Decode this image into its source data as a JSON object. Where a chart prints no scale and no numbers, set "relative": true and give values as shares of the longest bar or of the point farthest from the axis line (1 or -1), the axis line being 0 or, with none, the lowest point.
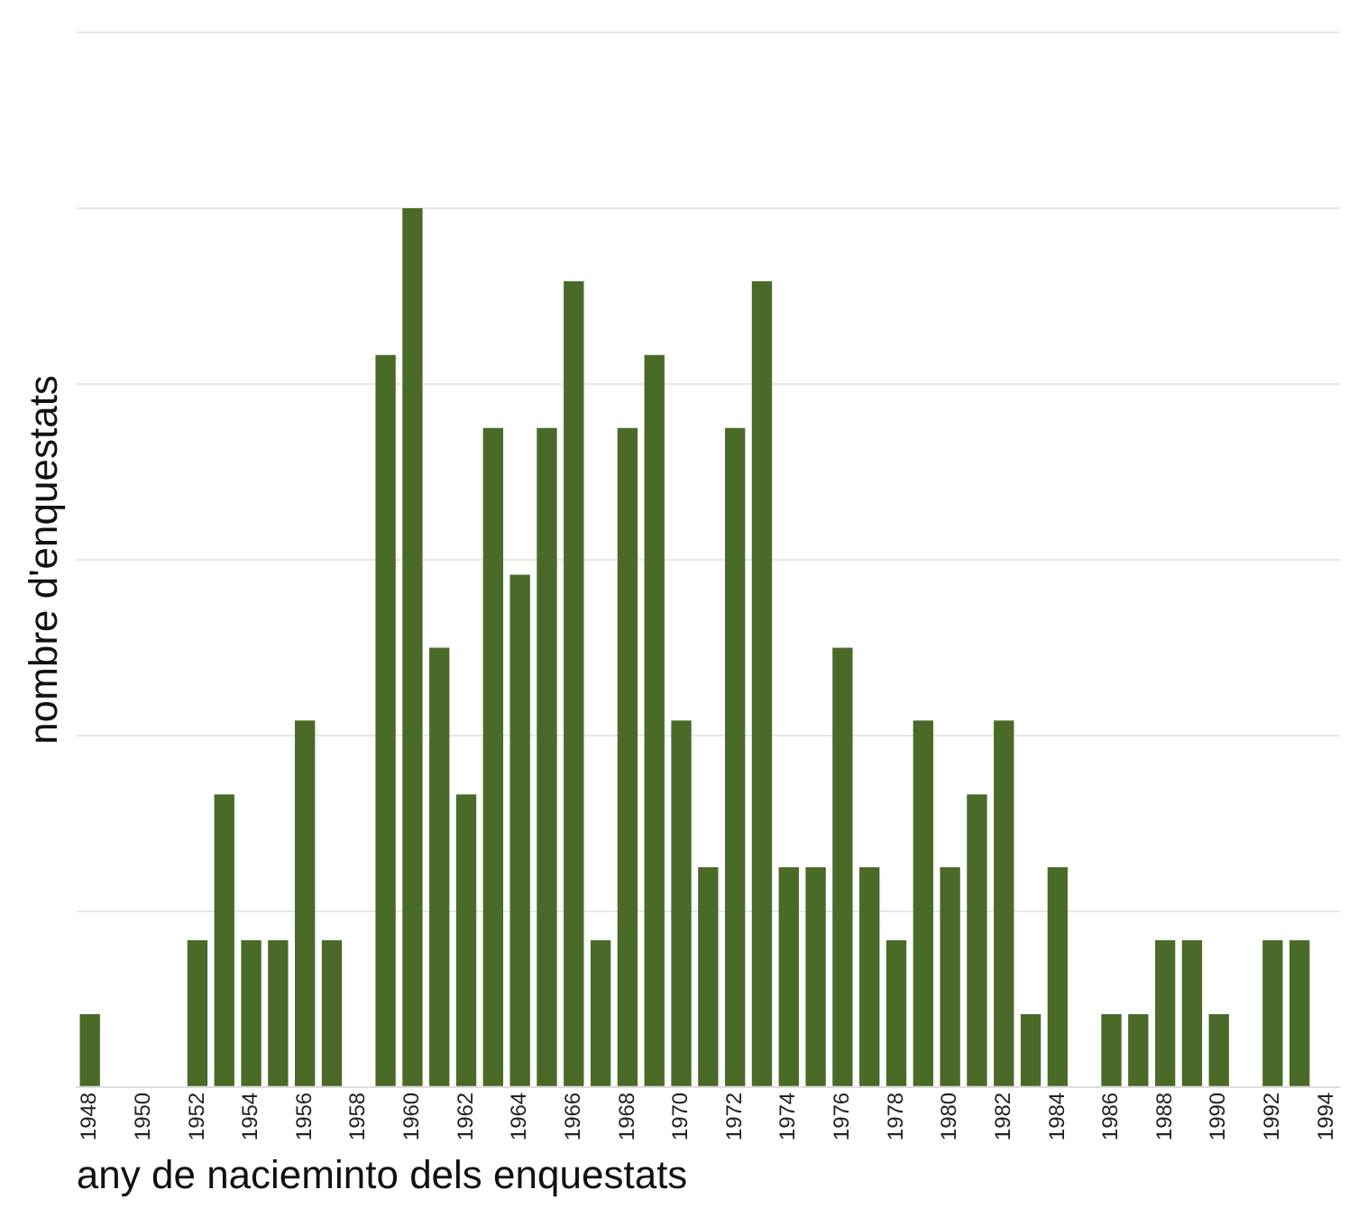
{
  "chart_data": {
    "type": "bar",
    "relative": true,
    "xlabel": "any de nacieminto dels enquestats",
    "ylabel": "nombre d'enquestats",
    "categories": [
      "1948",
      null,
      "1950",
      null,
      "1952",
      null,
      "1954",
      null,
      "1956",
      null,
      "1958",
      null,
      "1960",
      null,
      "1962",
      null,
      "1964",
      null,
      "1966",
      null,
      "1968",
      null,
      "1970",
      null,
      "1972",
      null,
      "1974",
      null,
      "1976",
      null,
      "1978",
      null,
      "1980",
      null,
      "1982",
      null,
      "1984",
      null,
      "1986",
      null,
      "1988",
      null,
      "1990",
      null,
      "1992",
      null,
      "1994"
    ],
    "values": [
      0.083,
      0,
      0,
      0,
      0.167,
      0.333,
      0.167,
      0.167,
      0.417,
      0.167,
      0,
      0.833,
      1,
      0.5,
      0.333,
      0.75,
      0.583,
      0.75,
      0.917,
      0.167,
      0.75,
      0.833,
      0.417,
      0.25,
      0.75,
      0.917,
      0.25,
      0.25,
      0.5,
      0.25,
      0.167,
      0.417,
      0.25,
      0.333,
      0.417,
      0.083,
      0.25,
      0,
      0.083,
      0.083,
      0.167,
      0.167,
      0.083,
      0,
      0.167,
      0.167,
      0
    ],
    "color": "#4a6b28",
    "grid": "y"
  }
}
